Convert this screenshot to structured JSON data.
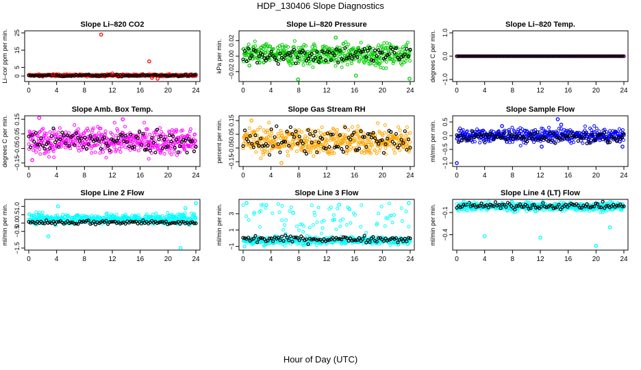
{
  "figure": {
    "title": "HDP_130406  Slope Diagnostics",
    "xlabel": "Hour of Day (UTC)"
  },
  "colors": {
    "co2": "#ff0000",
    "pressure": "#00cc00",
    "temp": "#ff00ff",
    "rh": "#ffa500",
    "flow": "#0000ff",
    "line": "#00ffff",
    "hourly": "#000000"
  },
  "chart_data": [
    {
      "type": "scatter",
      "title": "Slope Li–820 CO2",
      "ylabel": "Li–cor ppm per min.",
      "xlim": [
        0,
        24
      ],
      "xticks": [
        "0",
        "4",
        "8",
        "12",
        "16",
        "20",
        "24"
      ],
      "ylim": [
        -2,
        25
      ],
      "yticks": [
        "0",
        "5",
        "15",
        "25"
      ],
      "ytick_values": [
        0,
        5,
        15,
        25
      ],
      "color": "#ff0000",
      "dense_center": 0.4,
      "dense_spread": 0.3,
      "black_center": 0.3,
      "black_spread": 0.3,
      "outliers": [
        [
          10.4,
          24
        ],
        [
          17.3,
          8.5
        ],
        [
          12,
          1.5
        ],
        [
          17.7,
          -1
        ],
        [
          18.5,
          -1.5
        ],
        [
          3.5,
          1
        ]
      ]
    },
    {
      "type": "scatter",
      "title": "Slope Li–820 Pressure",
      "ylabel": "kPa per min.",
      "xlim": [
        0,
        24
      ],
      "xticks": [
        "0",
        "4",
        "8",
        "12",
        "16",
        "20",
        "24"
      ],
      "ylim": [
        -0.03,
        0.03
      ],
      "yticks": [
        "−0.02",
        "0.00",
        "0.02"
      ],
      "ytick_values": [
        -0.02,
        0,
        0.02
      ],
      "color": "#00cc00",
      "dense_center": 0.002,
      "dense_spread": 0.007,
      "black_center": 0.002,
      "black_spread": 0.006,
      "outliers": [
        [
          7.9,
          -0.03
        ],
        [
          16.2,
          -0.025
        ],
        [
          23.9,
          -0.029
        ],
        [
          0.9,
          -0.012
        ],
        [
          13.3,
          0.024
        ]
      ]
    },
    {
      "type": "scatter",
      "title": "Slope Li–820 Temp.",
      "ylabel": "degrees C per min.",
      "xlim": [
        0,
        24
      ],
      "xticks": [
        "0",
        "4",
        "8",
        "12",
        "16",
        "20",
        "24"
      ],
      "ylim": [
        -1.0,
        1.0
      ],
      "yticks": [
        "−1.0",
        "0.0",
        "1.0"
      ],
      "ytick_values": [
        -1,
        0,
        1
      ],
      "color": "#ff00ff",
      "dense_center": 0.0,
      "dense_spread": 0.0,
      "black_center": 0.0,
      "black_spread": 0.0,
      "outliers": []
    },
    {
      "type": "scatter",
      "title": "Slope Amb. Box Temp.",
      "ylabel": "degrees C per min.",
      "xlim": [
        0,
        24
      ],
      "xticks": [
        "0",
        "4",
        "8",
        "12",
        "16",
        "20",
        "24"
      ],
      "ylim": [
        -0.16,
        0.16
      ],
      "yticks": [
        "−0.15",
        "−0.05",
        "0.05",
        "0.15"
      ],
      "ytick_values": [
        -0.15,
        -0.05,
        0.05,
        0.15
      ],
      "color": "#ff00ff",
      "dense_center": 0.0,
      "dense_spread": 0.045,
      "black_center": 0.0,
      "black_spread": 0.04,
      "outliers": [
        [
          1.5,
          0.16
        ],
        [
          0.5,
          -0.13
        ],
        [
          13.5,
          0.15
        ]
      ]
    },
    {
      "type": "scatter",
      "title": "Slope Gas Stream RH",
      "ylabel": "percent per min.",
      "xlim": [
        0,
        24
      ],
      "xticks": [
        "0",
        "4",
        "8",
        "12",
        "16",
        "20",
        "24"
      ],
      "ylim": [
        -0.17,
        0.17
      ],
      "yticks": [
        "−0.15",
        "−0.05",
        "0.05",
        "0.15"
      ],
      "ytick_values": [
        -0.15,
        -0.05,
        0.05,
        0.15
      ],
      "color": "#ffa500",
      "dense_center": 0.0,
      "dense_spread": 0.05,
      "black_center": 0.01,
      "black_spread": 0.05,
      "outliers": [
        [
          5.5,
          -0.16
        ],
        [
          1.2,
          0.15
        ]
      ]
    },
    {
      "type": "scatter",
      "title": "Slope Sample Flow",
      "ylabel": "ml/min per min.",
      "xlim": [
        0,
        24
      ],
      "xticks": [
        "0",
        "4",
        "8",
        "12",
        "16",
        "20",
        "24"
      ],
      "ylim": [
        -1.05,
        0.65
      ],
      "yticks": [
        "−1.0",
        "−0.5",
        "0.0",
        "0.5"
      ],
      "ytick_values": [
        -1,
        -0.5,
        0,
        0.5
      ],
      "color": "#0000ff",
      "dense_center": 0.0,
      "dense_spread": 0.12,
      "black_center": -0.05,
      "black_spread": 0.1,
      "outliers": [
        [
          0,
          -1.0
        ],
        [
          14.5,
          0.6
        ],
        [
          15,
          0.4
        ],
        [
          12.2,
          -0.4
        ],
        [
          23.8,
          -0.4
        ],
        [
          6.5,
          0.35
        ]
      ]
    },
    {
      "type": "scatter",
      "title": "Slope Line 2 Flow",
      "ylabel": "ml/min per min.",
      "xlim": [
        0,
        24
      ],
      "xticks": [
        "0",
        "4",
        "8",
        "12",
        "16",
        "20",
        "24"
      ],
      "ylim": [
        -1.5,
        1.3
      ],
      "yticks": [
        "−1.5",
        "−0.5",
        "0.0",
        "0.5",
        "1.0"
      ],
      "ytick_values": [
        -1.5,
        -0.5,
        0,
        0.5,
        1.0
      ],
      "color": "#00ffff",
      "dense_center": 0.25,
      "dense_spread": 0.15,
      "black_center": 0.05,
      "black_spread": 0.07,
      "outliers": [
        [
          21.8,
          -1.5
        ],
        [
          24,
          1.2
        ],
        [
          4.2,
          1.0
        ],
        [
          2.8,
          -0.8
        ],
        [
          22.5,
          0.9
        ]
      ]
    },
    {
      "type": "scatter",
      "title": "Slope Line 3 Flow",
      "ylabel": "ml/min per min.",
      "xlim": [
        0,
        24
      ],
      "xticks": [
        "0",
        "4",
        "8",
        "12",
        "16",
        "20",
        "24"
      ],
      "ylim": [
        -1.2,
        4.5
      ],
      "yticks": [
        "−1",
        "1",
        "3"
      ],
      "ytick_values": [
        -1,
        1,
        3
      ],
      "color": "#00ffff",
      "dense_center": -0.3,
      "dense_spread": 0.25,
      "black_center": -0.1,
      "black_spread": 0.2,
      "scatter_high": true,
      "outliers": [
        [
          0.5,
          4.3
        ],
        [
          7.2,
          3.1
        ],
        [
          13.8,
          4.1
        ],
        [
          23.8,
          4.3
        ],
        [
          0.2,
          -1.0
        ]
      ]
    },
    {
      "type": "scatter",
      "title": "Slope Line 4 (LT) Flow",
      "ylabel": "ml/min per min.",
      "xlim": [
        0,
        24
      ],
      "xticks": [
        "0",
        "4",
        "8",
        "12",
        "16",
        "20",
        "24"
      ],
      "ylim": [
        -0.58,
        0.05
      ],
      "yticks": [
        "−0.4",
        "−0.1"
      ],
      "ytick_values": [
        -0.4,
        -0.1
      ],
      "color": "#00ffff",
      "dense_center": -0.02,
      "dense_spread": 0.03,
      "black_center": -0.01,
      "black_spread": 0.02,
      "outliers": [
        [
          4,
          -0.42
        ],
        [
          12,
          -0.44
        ],
        [
          20,
          -0.55
        ],
        [
          22,
          -0.3
        ],
        [
          1.5,
          0.02
        ]
      ]
    }
  ]
}
